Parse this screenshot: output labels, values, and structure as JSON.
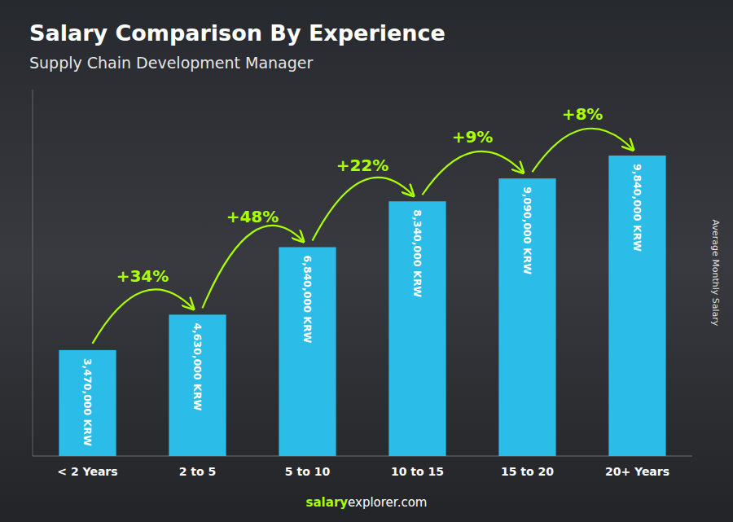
{
  "chart_data": {
    "type": "bar",
    "title": "Salary Comparison By Experience",
    "subtitle": "Supply Chain Development Manager",
    "ylabel": "Average Monthly Salary",
    "categories": [
      "< 2 Years",
      "2 to 5",
      "5 to 10",
      "10 to 15",
      "15 to 20",
      "20+ Years"
    ],
    "values": [
      3470000,
      4630000,
      6840000,
      8340000,
      9090000,
      9840000
    ],
    "value_labels": [
      "3,470,000 KRW",
      "4,630,000 KRW",
      "6,840,000 KRW",
      "8,340,000 KRW",
      "9,090,000 KRW",
      "9,840,000 KRW"
    ],
    "data_labels": true,
    "color": "#2bbde8",
    "ylim": [
      0,
      12000000
    ],
    "tick_labels": "x",
    "grid": false,
    "annotations": [
      {
        "text": "+34%",
        "color": "#aaff00"
      },
      {
        "text": "+48%",
        "color": "#aaff00"
      },
      {
        "text": "+22%",
        "color": "#aaff00"
      },
      {
        "text": "+9%",
        "color": "#aaff00"
      },
      {
        "text": "+8%",
        "color": "#aaff00"
      }
    ],
    "footer": [
      {
        "text": "salary",
        "color": "#aaff00"
      },
      {
        "text": "explorer.com",
        "color": "#ffffff"
      }
    ]
  }
}
